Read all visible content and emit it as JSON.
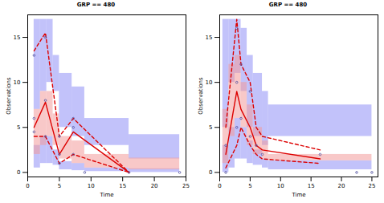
{
  "chart_data": [
    {
      "type": "vpc",
      "title": "GRP == 480",
      "x_label": "Time",
      "y_label": "Observations",
      "xlim": [
        0,
        25
      ],
      "ylim": [
        -0.5,
        17.5
      ],
      "xticks": [
        0,
        5,
        10,
        15,
        20,
        25
      ],
      "yticks": [
        0,
        5,
        10,
        15
      ],
      "bands": [
        {
          "color": "#8f8ff5",
          "bins": [
            1,
            2,
            3,
            4,
            5,
            7,
            9,
            16,
            24
          ],
          "lower": [
            7,
            9,
            10,
            9,
            5,
            4,
            3,
            1.5
          ],
          "upper": [
            17,
            17,
            17,
            13,
            11,
            9.5,
            6,
            4.2
          ]
        },
        {
          "color": "#8f8ff5",
          "bins": [
            1,
            2,
            3,
            4,
            5,
            7,
            9,
            16,
            24
          ],
          "lower": [
            0.5,
            1,
            1,
            0.8,
            0.3,
            0.2,
            0.1,
            0
          ],
          "upper": [
            3,
            4,
            4,
            2.5,
            1.2,
            1,
            0.5,
            0.4
          ]
        },
        {
          "color": "#f29a9a",
          "bins": [
            1,
            2,
            3,
            4,
            5,
            7,
            9,
            16,
            24
          ],
          "lower": [
            2,
            3,
            4,
            3,
            1.5,
            1,
            0.5,
            0.3
          ],
          "upper": [
            7,
            9,
            9,
            6.5,
            4,
            3.5,
            2,
            1.6
          ]
        }
      ],
      "series": [
        {
          "color": "#dd0000",
          "line_style": "solid",
          "x": [
            1,
            2.8,
            5,
            7.2,
            16
          ],
          "values": [
            5,
            7.8,
            2,
            4.5,
            0
          ]
        },
        {
          "color": "#dd0000",
          "line_style": "dashed",
          "x": [
            1,
            2.8,
            5,
            7.2,
            16
          ],
          "values": [
            13.5,
            15.5,
            4,
            6,
            0
          ]
        },
        {
          "color": "#dd0000",
          "line_style": "dashed",
          "x": [
            1,
            2.8,
            5,
            7.2,
            16
          ],
          "values": [
            4,
            4,
            1,
            2,
            0
          ]
        }
      ],
      "points": {
        "color": "#5050a0",
        "x": [
          1,
          1,
          1,
          2.8,
          2.8,
          2.8,
          5,
          5,
          5,
          7.2,
          7.2,
          7.2,
          9,
          16,
          24
        ],
        "y": [
          4.5,
          6,
          13,
          4,
          8,
          15,
          1,
          2,
          4,
          2,
          5,
          6,
          0,
          0,
          0
        ]
      }
    },
    {
      "type": "vpc",
      "title": "GRP == 480",
      "x_label": "Time",
      "y_label": "Observations",
      "xlim": [
        0,
        26
      ],
      "ylim": [
        -0.5,
        17.5
      ],
      "xticks": [
        0,
        5,
        10,
        15,
        20,
        25
      ],
      "yticks": [
        0,
        5,
        10,
        15
      ],
      "bands": [
        {
          "color": "#8f8ff5",
          "bins": [
            0.5,
            1.5,
            2.5,
            3.5,
            4.5,
            5.5,
            7,
            8,
            25
          ],
          "lower": [
            5,
            10,
            11,
            9,
            5,
            4,
            3,
            4
          ],
          "upper": [
            17,
            17,
            17,
            16,
            13,
            11,
            9,
            7.5
          ]
        },
        {
          "color": "#8f8ff5",
          "bins": [
            0.5,
            1.5,
            2.5,
            3.5,
            4.5,
            5.5,
            7,
            8,
            25
          ],
          "lower": [
            0,
            0.5,
            1.5,
            1.5,
            1,
            0.8,
            0.5,
            0.3
          ],
          "upper": [
            3,
            5,
            6,
            5,
            3.5,
            2.5,
            1.5,
            1.3
          ]
        },
        {
          "color": "#f29a9a",
          "bins": [
            0.5,
            1.5,
            2.5,
            3.5,
            4.5,
            5.5,
            7,
            8,
            25
          ],
          "lower": [
            1,
            4,
            6,
            5,
            3,
            2,
            1.5,
            1.3
          ],
          "upper": [
            7,
            12,
            13,
            10,
            7.5,
            5,
            3.5,
            2
          ]
        }
      ],
      "series": [
        {
          "color": "#dd0000",
          "line_style": "solid",
          "x": [
            1,
            2.8,
            3.5,
            5,
            6,
            7,
            16.5
          ],
          "values": [
            2,
            9,
            7,
            5,
            3,
            2.5,
            1.5
          ]
        },
        {
          "color": "#dd0000",
          "line_style": "dashed",
          "x": [
            1,
            2.8,
            3.5,
            5,
            6,
            7,
            16.5
          ],
          "values": [
            5,
            17,
            12,
            10,
            5,
            4,
            2.5
          ]
        },
        {
          "color": "#dd0000",
          "line_style": "dashed",
          "x": [
            1,
            2.8,
            3.5,
            5,
            6,
            7,
            16.5
          ],
          "values": [
            0.5,
            3,
            5,
            3,
            2,
            1.5,
            1
          ]
        }
      ],
      "points": {
        "color": "#5050a0",
        "x": [
          1,
          1,
          2.8,
          2.8,
          2.8,
          3.5,
          3.5,
          5,
          5,
          6,
          7,
          16.5,
          22.5,
          25
        ],
        "y": [
          0,
          3,
          5,
          10,
          16,
          6,
          12,
          4,
          9,
          3,
          2,
          2,
          0,
          0
        ]
      }
    }
  ]
}
